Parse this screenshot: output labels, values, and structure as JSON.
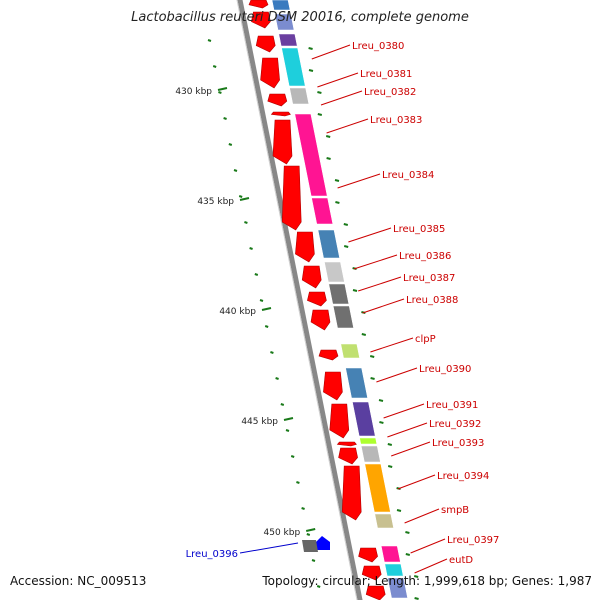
{
  "header": {
    "title": "Lactobacillus reuteri DSM 20016, complete genome"
  },
  "footer": {
    "accession": "Accession: NC_009513",
    "summary": "Topology: circular; Length: 1,999,618 bp; Genes: 1,987"
  },
  "ticks": [
    "430 kbp",
    "435 kbp",
    "440 kbp",
    "445 kbp",
    "450 kbp"
  ],
  "genes": [
    {
      "label": "Lreu_0380",
      "color": "#cc0000"
    },
    {
      "label": "Lreu_0381",
      "color": "#cc0000"
    },
    {
      "label": "Lreu_0382",
      "color": "#cc0000"
    },
    {
      "label": "Lreu_0383",
      "color": "#cc0000"
    },
    {
      "label": "Lreu_0384",
      "color": "#cc0000"
    },
    {
      "label": "Lreu_0385",
      "color": "#cc0000"
    },
    {
      "label": "Lreu_0386",
      "color": "#cc0000"
    },
    {
      "label": "Lreu_0387",
      "color": "#cc0000"
    },
    {
      "label": "Lreu_0388",
      "color": "#cc0000"
    },
    {
      "label": "clpP",
      "color": "#cc0000"
    },
    {
      "label": "Lreu_0390",
      "color": "#cc0000"
    },
    {
      "label": "Lreu_0391",
      "color": "#cc0000"
    },
    {
      "label": "Lreu_0392",
      "color": "#cc0000"
    },
    {
      "label": "Lreu_0393",
      "color": "#cc0000"
    },
    {
      "label": "Lreu_0394",
      "color": "#cc0000"
    },
    {
      "label": "smpB",
      "color": "#cc0000"
    },
    {
      "label": "Lreu_0397",
      "color": "#cc0000"
    },
    {
      "label": "eutD",
      "color": "#cc0000"
    },
    {
      "label": "Lreu_0396",
      "color": "#0000cc"
    }
  ],
  "colors": {
    "backbone": "#888888",
    "cds": "#ff0000",
    "minus_cds": "#0000ff",
    "gc_skew": "#1a7a1a"
  }
}
